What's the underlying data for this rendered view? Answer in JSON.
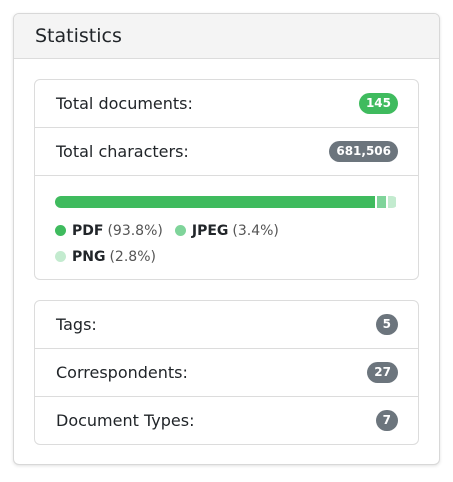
{
  "header": {
    "title": "Statistics"
  },
  "documents": {
    "total_documents": {
      "label": "Total documents:",
      "count": "145"
    },
    "total_characters": {
      "label": "Total characters:",
      "count": "681,506"
    },
    "file_types": [
      {
        "name": "PDF",
        "percent": 93.8,
        "percent_label": "(93.8%)",
        "color": "#3fbb5e"
      },
      {
        "name": "JPEG",
        "percent": 3.4,
        "percent_label": "(3.4%)",
        "color": "#7fd49a"
      },
      {
        "name": "PNG",
        "percent": 2.8,
        "percent_label": "(2.8%)",
        "color": "#c3ebcf"
      }
    ]
  },
  "metadata": [
    {
      "label": "Tags:",
      "count": "5"
    },
    {
      "label": "Correspondents:",
      "count": "27"
    },
    {
      "label": "Document Types:",
      "count": "7"
    }
  ]
}
